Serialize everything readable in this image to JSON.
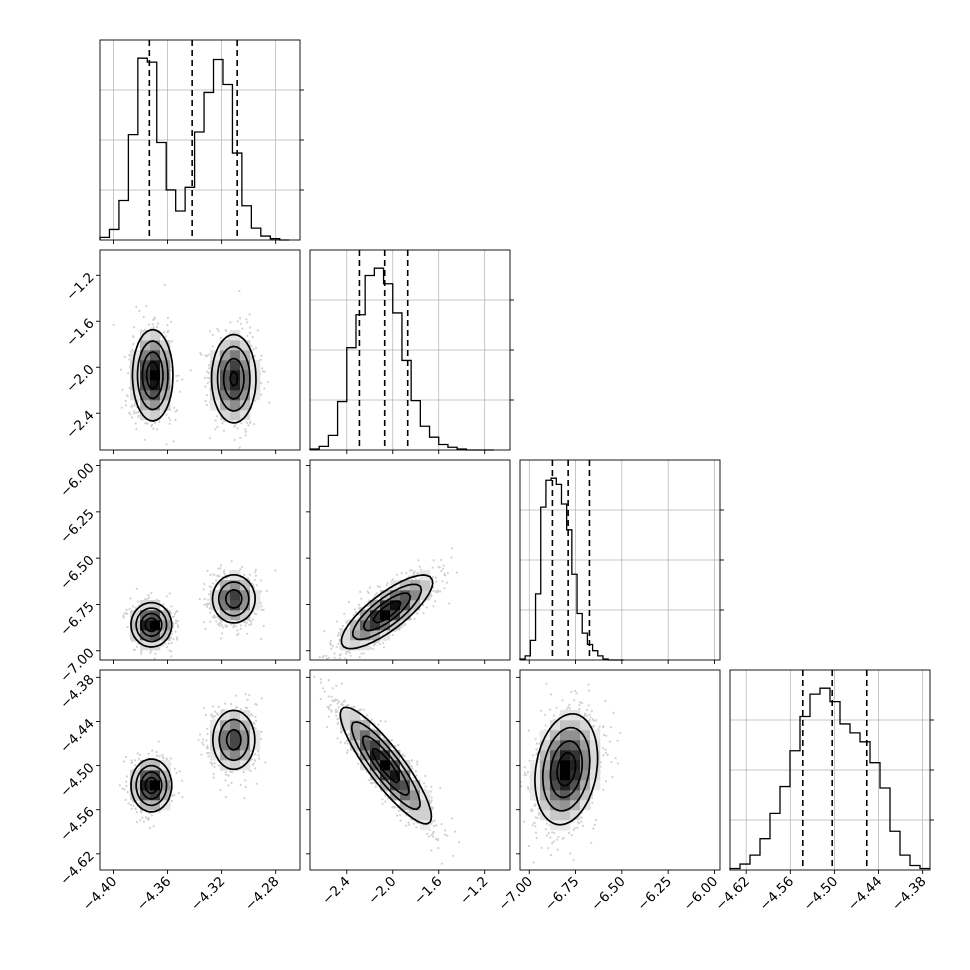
{
  "chart_data": {
    "type": "corner",
    "title": "",
    "colors": {
      "line": "#000000",
      "grid": "#b0b0b0",
      "background": "#ffffff",
      "cell_dark": "#000000",
      "cell_light": "#f4f4f4"
    },
    "grid": true,
    "variables": [
      {
        "index": 0,
        "range": [
          -4.41,
          -4.262
        ],
        "ticks": [
          -4.4,
          -4.36,
          -4.32,
          -4.28
        ],
        "tick_labels": [
          "−4.40",
          "−4.36",
          "−4.32",
          "−4.28"
        ]
      },
      {
        "index": 1,
        "range": [
          -2.72,
          -0.98
        ],
        "ticks": [
          -2.4,
          -2.0,
          -1.6,
          -1.2
        ],
        "tick_labels": [
          "−2.4",
          "−2.0",
          "−1.6",
          "−1.2"
        ]
      },
      {
        "index": 2,
        "range": [
          -7.05,
          -5.97
        ],
        "ticks": [
          -7.0,
          -6.75,
          -6.5,
          -6.25,
          -6.0
        ],
        "tick_labels": [
          "−7.00",
          "−6.75",
          "−6.50",
          "−6.25",
          "−6.00"
        ]
      },
      {
        "index": 3,
        "range": [
          -4.642,
          -4.37
        ],
        "ticks": [
          -4.62,
          -4.56,
          -4.5,
          -4.44,
          -4.38
        ],
        "tick_labels": [
          "−4.62",
          "−4.56",
          "−4.50",
          "−4.44",
          "−4.38"
        ]
      }
    ],
    "histograms": [
      {
        "variable": 0,
        "bins": [
          -4.41,
          -4.403,
          -4.396,
          -4.389,
          -4.382,
          -4.375,
          -4.368,
          -4.361,
          -4.354,
          -4.347,
          -4.34,
          -4.333,
          -4.326,
          -4.319,
          -4.312,
          -4.305,
          -4.298,
          -4.291,
          -4.284,
          -4.277,
          -4.27
        ],
        "counts": [
          2,
          8,
          30,
          80,
          138,
          135,
          74,
          38,
          22,
          40,
          82,
          112,
          137,
          118,
          66,
          26,
          9,
          3,
          1,
          0
        ],
        "quantiles": [
          -4.3735,
          -4.3418,
          -4.3085
        ]
      },
      {
        "variable": 1,
        "bins": [
          -2.72,
          -2.64,
          -2.56,
          -2.48,
          -2.4,
          -2.32,
          -2.24,
          -2.16,
          -2.08,
          -2.0,
          -1.92,
          -1.84,
          -1.76,
          -1.68,
          -1.6,
          -1.52,
          -1.44,
          -1.36,
          -1.28,
          -1.2,
          -1.12
        ],
        "counts": [
          1,
          4,
          16,
          53,
          112,
          148,
          191,
          199,
          182,
          150,
          98,
          54,
          26,
          14,
          6,
          3,
          1,
          0,
          0,
          0
        ],
        "quantiles": [
          -2.29,
          -2.07,
          -1.87
        ]
      },
      {
        "variable": 2,
        "bins": [
          -7.05,
          -7.022,
          -6.994,
          -6.966,
          -6.938,
          -6.91,
          -6.882,
          -6.854,
          -6.826,
          -6.798,
          -6.77,
          -6.742,
          -6.714,
          -6.686,
          -6.658,
          -6.63,
          -6.602,
          -6.574,
          -6.546,
          -6.518,
          -6.49
        ],
        "counts": [
          1,
          4,
          19,
          64,
          148,
          174,
          176,
          170,
          151,
          126,
          83,
          45,
          26,
          15,
          9,
          4,
          1,
          0,
          0,
          0
        ],
        "quantiles": [
          -6.875,
          -6.79,
          -6.675
        ]
      },
      {
        "variable": 3,
        "bins": [
          -4.642,
          -4.6284,
          -4.6148,
          -4.6012,
          -4.5876,
          -4.574,
          -4.5604,
          -4.5468,
          -4.5332,
          -4.5196,
          -4.506,
          -4.4924,
          -4.4788,
          -4.4652,
          -4.4516,
          -4.438,
          -4.4244,
          -4.4108,
          -4.3972,
          -4.3836,
          -4.37
        ],
        "counts": [
          1,
          4,
          10,
          21,
          38,
          56,
          80,
          103,
          118,
          122,
          113,
          98,
          92,
          86,
          72,
          55,
          26,
          10,
          3,
          1
        ],
        "quantiles": [
          -4.543,
          -4.503,
          -4.456
        ]
      }
    ],
    "pairs": [
      {
        "x_var": 0,
        "y_var": 1,
        "corr": 0.0,
        "modes": [
          {
            "x": -4.371,
            "y": -2.07,
            "sx": 0.0075,
            "sy": 0.2,
            "w": 0.5
          },
          {
            "x": -4.311,
            "y": -2.1,
            "sx": 0.0085,
            "sy": 0.2,
            "w": 0.5
          }
        ]
      },
      {
        "x_var": 0,
        "y_var": 2,
        "corr": 0.0,
        "modes": [
          {
            "x": -4.372,
            "y": -6.86,
            "sx": 0.0075,
            "sy": 0.06,
            "w": 0.5
          },
          {
            "x": -4.311,
            "y": -6.72,
            "sx": 0.0085,
            "sy": 0.07,
            "w": 0.5
          }
        ]
      },
      {
        "x_var": 0,
        "y_var": 3,
        "corr": 0.0,
        "modes": [
          {
            "x": -4.372,
            "y": -4.527,
            "sx": 0.0075,
            "sy": 0.018,
            "w": 0.5
          },
          {
            "x": -4.311,
            "y": -4.465,
            "sx": 0.0085,
            "sy": 0.022,
            "w": 0.5
          }
        ]
      },
      {
        "x_var": 1,
        "y_var": 2,
        "corr": 0.8,
        "modes": [
          {
            "x": -2.05,
            "y": -6.79,
            "sx": 0.2,
            "sy": 0.1,
            "w": 1
          }
        ]
      },
      {
        "x_var": 1,
        "y_var": 3,
        "corr": -0.88,
        "modes": [
          {
            "x": -2.06,
            "y": -4.5,
            "sx": 0.2,
            "sy": 0.04,
            "w": 1
          }
        ]
      },
      {
        "x_var": 2,
        "y_var": 3,
        "corr": 0.2,
        "modes": [
          {
            "x": -6.8,
            "y": -4.505,
            "sx": 0.085,
            "sy": 0.038,
            "w": 1
          }
        ]
      }
    ]
  }
}
